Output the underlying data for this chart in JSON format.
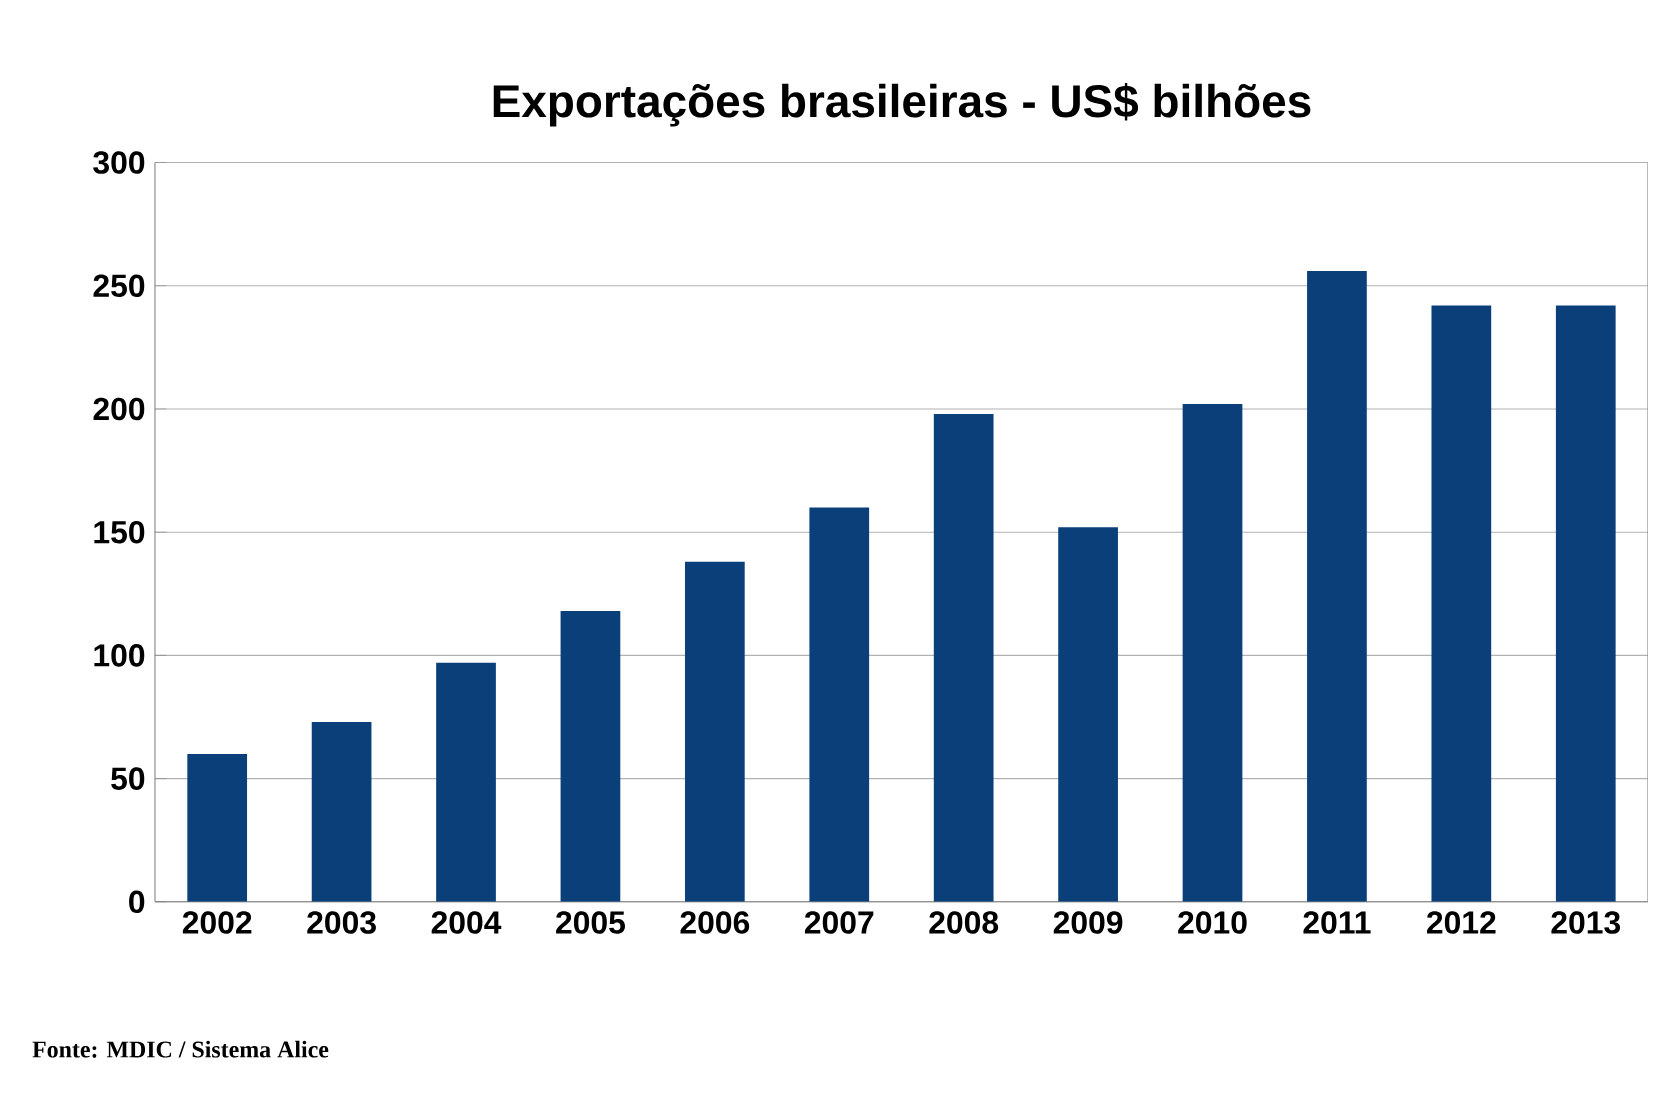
{
  "chart_data": {
    "type": "bar",
    "title": "Exportações brasileiras - US$ bilhões",
    "categories": [
      "2002",
      "2003",
      "2004",
      "2005",
      "2006",
      "2007",
      "2008",
      "2009",
      "2010",
      "2011",
      "2012",
      "2013"
    ],
    "values": [
      60,
      73,
      97,
      118,
      138,
      160,
      198,
      152,
      202,
      256,
      242,
      242
    ],
    "color": "#0a3f7a",
    "ylim": [
      0,
      300
    ],
    "yticks": [
      0,
      50,
      100,
      150,
      200,
      250,
      300
    ],
    "grid": "y",
    "annotations": [
      "Fonte: MDIC / Sistema Alice"
    ]
  }
}
